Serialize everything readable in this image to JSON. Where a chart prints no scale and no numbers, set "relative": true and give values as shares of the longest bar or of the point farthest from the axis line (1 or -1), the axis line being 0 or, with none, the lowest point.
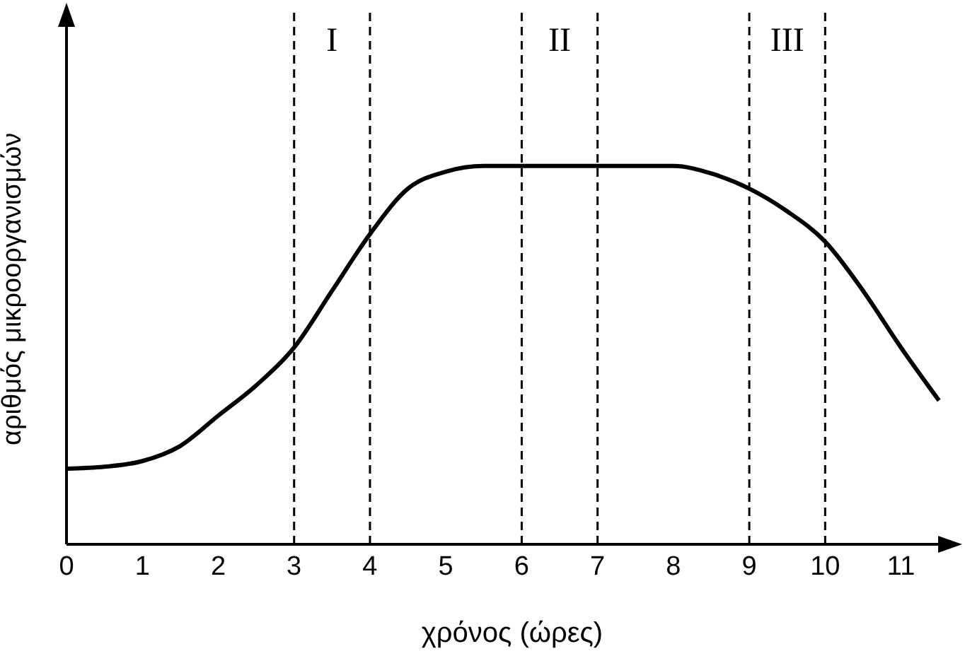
{
  "chart_data": {
    "type": "line",
    "xlabel": "χρόνος (ώρες)",
    "ylabel": "αριθμός μικροοργανισμών",
    "relative": true,
    "x": [
      0,
      0.5,
      1,
      1.5,
      2,
      2.5,
      3,
      3.5,
      4,
      4.5,
      5,
      5.5,
      6,
      7,
      8,
      8.5,
      9,
      9.5,
      10,
      10.5,
      11,
      11.5
    ],
    "series": [
      {
        "color": "#000000",
        "values": [
          0.2,
          0.205,
          0.22,
          0.26,
          0.34,
          0.42,
          0.52,
          0.67,
          0.82,
          0.94,
          0.985,
          1,
          1,
          1,
          1,
          0.98,
          0.94,
          0.88,
          0.8,
          0.67,
          0.52,
          0.38
        ]
      }
    ],
    "xlim": [
      0,
      11.75
    ],
    "xticks": [
      0,
      1,
      2,
      3,
      4,
      5,
      6,
      7,
      8,
      9,
      10,
      11
    ],
    "ref_lines": [
      {
        "axis": "x",
        "value": 3,
        "line_style": "dashed"
      },
      {
        "axis": "x",
        "value": 4,
        "line_style": "dashed"
      },
      {
        "axis": "x",
        "value": 6,
        "line_style": "dashed"
      },
      {
        "axis": "x",
        "value": 7,
        "line_style": "dashed"
      },
      {
        "axis": "x",
        "value": 9,
        "line_style": "dashed"
      },
      {
        "axis": "x",
        "value": 10,
        "line_style": "dashed"
      }
    ],
    "annotations": [
      "I",
      "II",
      "III"
    ],
    "marker": "none",
    "line_style": "solid",
    "grid": false,
    "legend": false
  }
}
